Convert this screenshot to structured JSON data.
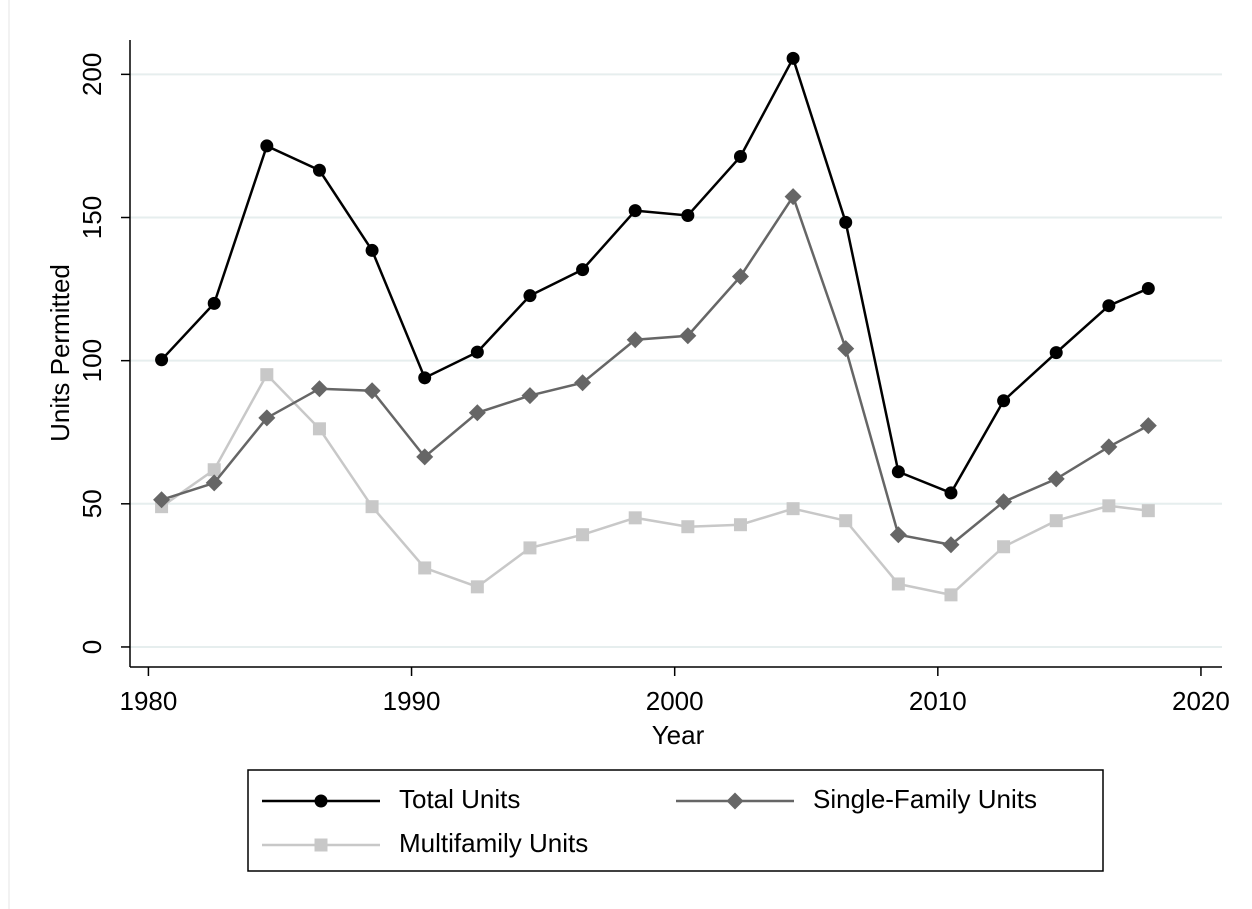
{
  "chart_data": {
    "type": "line",
    "x_label": "Year",
    "y_label": "Units Permitted",
    "x": [
      1980.5,
      1982.5,
      1984.5,
      1986.5,
      1988.5,
      1990.5,
      1992.5,
      1994.5,
      1996.5,
      1998.5,
      2000.5,
      2002.5,
      2004.5,
      2006.5,
      2008.5,
      2010.5,
      2012.5,
      2014.5,
      2016.5,
      2018
    ],
    "series": [
      {
        "name": "Total Units",
        "color": "#000000",
        "marker": "circle",
        "values": [
          100.3,
          120,
          175,
          166.5,
          138.5,
          94,
          103,
          122.7,
          131.8,
          152.4,
          150.7,
          171.3,
          205.6,
          148.3,
          61.2,
          53.8,
          86,
          102.8,
          119.2,
          125.2
        ]
      },
      {
        "name": "Single-Family Units",
        "color": "#666666",
        "marker": "diamond",
        "values": [
          51.4,
          57.3,
          80,
          90.2,
          89.5,
          66.4,
          81.8,
          87.8,
          92.3,
          107.3,
          108.7,
          129.4,
          157.3,
          104.2,
          39.2,
          35.7,
          50.7,
          58.7,
          69.9,
          77.3
        ]
      },
      {
        "name": "Multifamily Units",
        "color": "#c8c8c8",
        "marker": "square",
        "values": [
          49,
          61.9,
          95.1,
          76.2,
          49,
          27.6,
          21,
          34.6,
          39.2,
          45.1,
          42,
          42.7,
          48.3,
          44.1,
          22,
          18.2,
          35,
          44.1,
          49.3,
          47.6
        ]
      }
    ],
    "xlim": [
      1979.3,
      2020.8
    ],
    "xticks": [
      1980,
      1990,
      2000,
      2010,
      2020
    ],
    "ylim": [
      -7,
      212
    ],
    "yticks": [
      0,
      50,
      100,
      150,
      200
    ],
    "grid": true,
    "legend_position": "bottom"
  }
}
